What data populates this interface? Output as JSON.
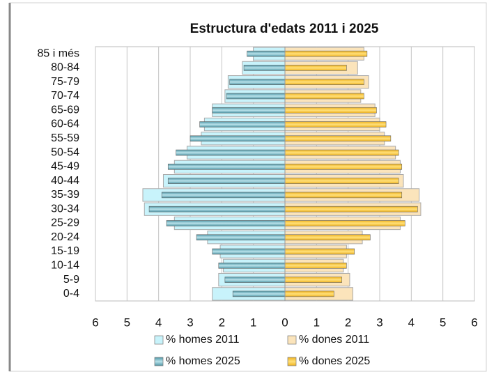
{
  "chart_data": {
    "type": "pyramid",
    "title": "Estructura d'edats 2011 i 2025",
    "categories": [
      "85 i més",
      "80-84",
      "75-79",
      "70-74",
      "65-69",
      "60-64",
      "55-59",
      "50-54",
      "45-49",
      "40-44",
      "35-39",
      "30-34",
      "25-29",
      "20-24",
      "15-19",
      "10-14",
      "5-9",
      "0-4"
    ],
    "series": [
      {
        "name": "% homes 2011",
        "color": "#c8f3fb",
        "values": [
          -1.0,
          -1.35,
          -1.8,
          -1.9,
          -2.3,
          -2.55,
          -2.65,
          -3.1,
          -3.5,
          -3.85,
          -4.5,
          -4.45,
          -3.5,
          -2.45,
          -2.05,
          -1.95,
          -2.1,
          -2.3
        ]
      },
      {
        "name": "% dones 2011",
        "color": "#fbe4bb",
        "values": [
          2.5,
          2.3,
          2.65,
          2.4,
          2.85,
          3.0,
          3.15,
          3.5,
          3.65,
          3.75,
          4.25,
          4.3,
          3.65,
          2.45,
          1.95,
          1.85,
          2.05,
          2.15
        ]
      },
      {
        "name": "% homes 2025",
        "color": "#4f96a6",
        "values": [
          -1.2,
          -1.3,
          -1.75,
          -1.85,
          -2.3,
          -2.7,
          -3.0,
          -3.45,
          -3.7,
          -3.7,
          -3.9,
          -4.3,
          -3.75,
          -2.8,
          -2.3,
          -2.1,
          -1.9,
          -1.65
        ]
      },
      {
        "name": "% dones 2025",
        "color": "#f0b21e",
        "values": [
          2.6,
          1.95,
          2.5,
          2.5,
          2.9,
          3.2,
          3.35,
          3.6,
          3.7,
          3.6,
          3.7,
          4.2,
          3.8,
          2.7,
          2.2,
          1.95,
          1.8,
          1.55
        ]
      }
    ],
    "xlim": [
      -6,
      6
    ],
    "xticks": [
      {
        "value": -6,
        "label": "6"
      },
      {
        "value": -5,
        "label": "5"
      },
      {
        "value": -4,
        "label": "4"
      },
      {
        "value": -3,
        "label": "3"
      },
      {
        "value": -2,
        "label": "2"
      },
      {
        "value": -1,
        "label": "1"
      },
      0,
      1,
      2,
      3,
      4,
      5,
      6
    ],
    "grid": true
  }
}
